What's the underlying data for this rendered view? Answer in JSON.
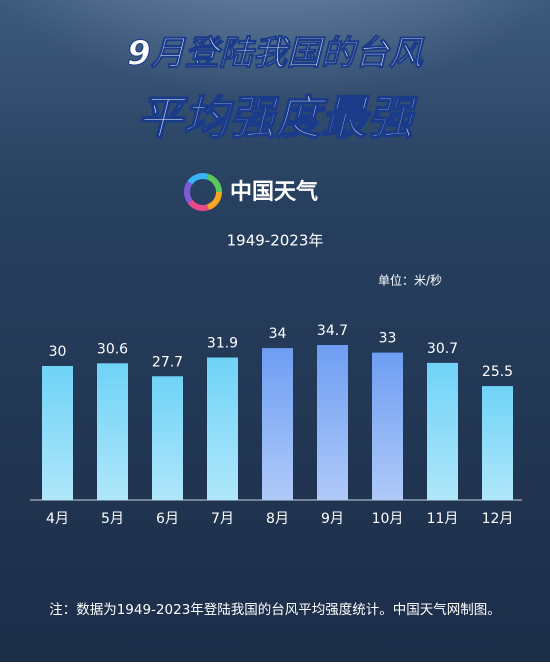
{
  "header": {
    "title_line1": "9月登陆我国的台风",
    "title_line2": "平均强度最强",
    "logo_text": "中国天气"
  },
  "chart_data": {
    "type": "bar",
    "subtitle": "1949-2023年",
    "unit": "单位：米/秒",
    "categories": [
      "4月",
      "5月",
      "6月",
      "7月",
      "8月",
      "9月",
      "10月",
      "11月",
      "12月"
    ],
    "values": [
      30,
      30.6,
      27.7,
      31.9,
      34,
      34.7,
      33,
      30.7,
      25.5
    ],
    "colors": [
      "#6fd3f7",
      "#6fd3f7",
      "#6fd3f7",
      "#6fd3f7",
      "#6e9ef3",
      "#6e9ef3",
      "#6e9ef3",
      "#6fd3f7",
      "#6fd3f7"
    ]
  },
  "note": "注：数据为1949-2023年登陆我国的台风平均强度统计。中国天气网制图。"
}
